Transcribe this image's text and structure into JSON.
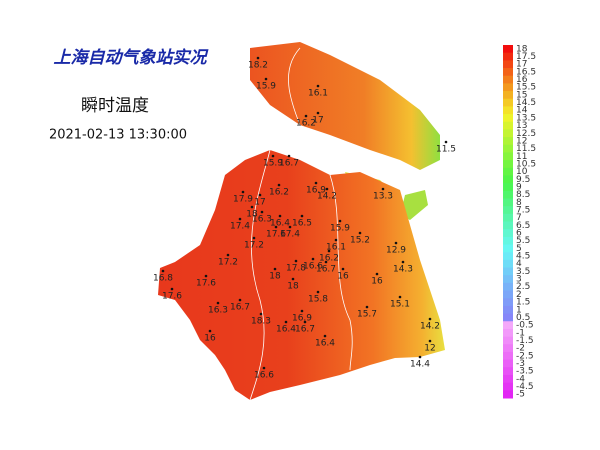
{
  "header": {
    "title": "上海自动气象站实况",
    "subtitle": "瞬时温度",
    "time": "2021-02-13 13:30:00"
  },
  "stations": [
    18.2,
    15.9,
    16.1,
    16.2,
    17,
    11.5,
    15.9,
    16.7,
    16.2,
    16.9,
    14.2,
    13.3,
    17.9,
    17,
    18,
    16.3,
    16.4,
    16.5,
    17.6,
    17.4,
    17.4,
    15.9,
    15.2,
    17.2,
    16.1,
    12.9,
    16.2,
    17.2,
    16.6,
    16.7,
    17.8,
    14.3,
    16.8,
    18,
    16,
    16,
    17.6,
    18,
    17.6,
    15.8,
    15.1,
    16.7,
    16.3,
    15.7,
    16.9,
    18.3,
    14.2,
    16.4,
    16.7,
    16,
    16.4,
    12,
    14.4,
    16.6
  ],
  "colorbar": [
    18,
    17.5,
    17,
    16.5,
    16,
    15.5,
    15,
    14.5,
    14,
    13.5,
    13,
    12.5,
    12,
    11.5,
    11,
    10.5,
    10,
    9.5,
    9,
    8.5,
    8,
    7.5,
    7,
    6.5,
    6,
    5.5,
    5,
    4.5,
    4,
    3.5,
    3,
    2.5,
    2,
    1.5,
    1,
    0.5,
    -0.5,
    -1,
    -1.5,
    -2,
    -2.5,
    -3,
    -3.5,
    -4,
    -4.5,
    -5
  ]
}
